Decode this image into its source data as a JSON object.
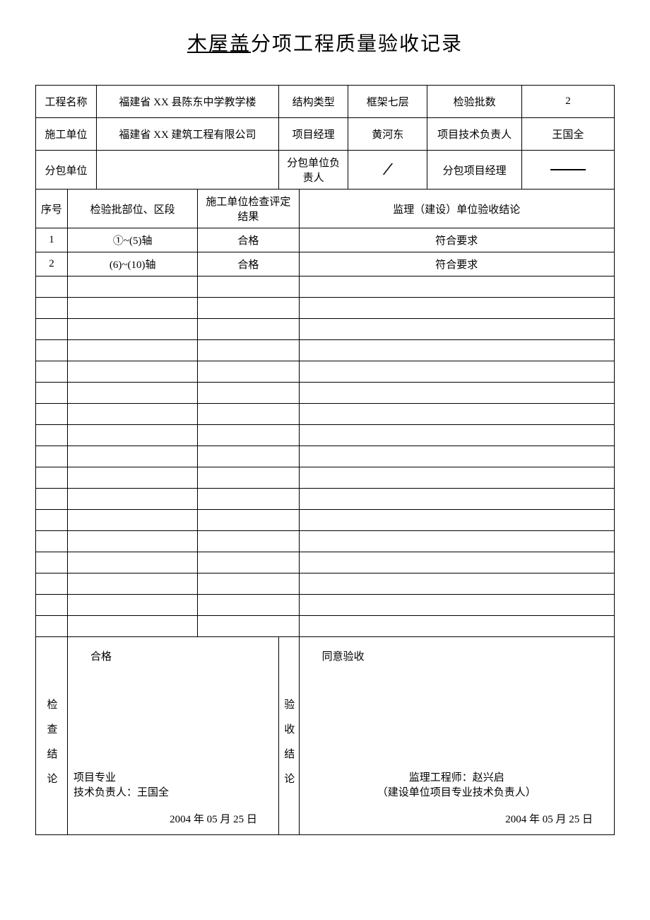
{
  "title": {
    "underlined": "木屋盖",
    "rest": "分项工程质量验收记录"
  },
  "header": {
    "projectNameLabel": "工程名称",
    "projectNameValue": "福建省 XX 县陈东中学教学楼",
    "structTypeLabel": "结构类型",
    "structTypeValue": "框架七层",
    "batchCountLabel": "检验批数",
    "batchCountValue": "2",
    "constructorLabel": "施工单位",
    "constructorValue": "福建省 XX 建筑工程有限公司",
    "pmLabel": "项目经理",
    "pmValue": "黄河东",
    "techLeadLabel": "项目技术负责人",
    "techLeadValue": "王国全",
    "subcontractorLabel": "分包单位",
    "subcontractorValue": "",
    "subLeaderLabel": "分包单位负责人",
    "subLeaderValue": "／",
    "subPmLabel": "分包项目经理",
    "subPmValue": ""
  },
  "columns": {
    "seq": "序号",
    "section": "检验批部位、区段",
    "result": "施工单位检查评定结果",
    "conclusion": "监理（建设）单位验收结论"
  },
  "rows": [
    {
      "seq": "1",
      "section": "①~(5)轴",
      "result": "合格",
      "conclusion": "符合要求"
    },
    {
      "seq": "2",
      "section": "(6)~(10)轴",
      "result": "合格",
      "conclusion": "符合要求"
    }
  ],
  "emptyRowCount": 17,
  "footer": {
    "checkLabel": "检查结论",
    "checkTop": "合格",
    "checkMid1": "项目专业",
    "checkMid2": "技术负责人：王国全",
    "checkDate": "2004 年 05 月 25 日",
    "acceptLabel": "验收结论",
    "acceptTop": "同意验收",
    "acceptMid1": "监理工程师：赵兴启",
    "acceptMid2": "（建设单位项目专业技术负责人）",
    "acceptDate": "2004 年 05 月 25 日"
  },
  "styles": {
    "background": "#ffffff",
    "border": "#000000",
    "text": "#000000",
    "titleFontSize": 28,
    "cellFontSize": 15
  }
}
